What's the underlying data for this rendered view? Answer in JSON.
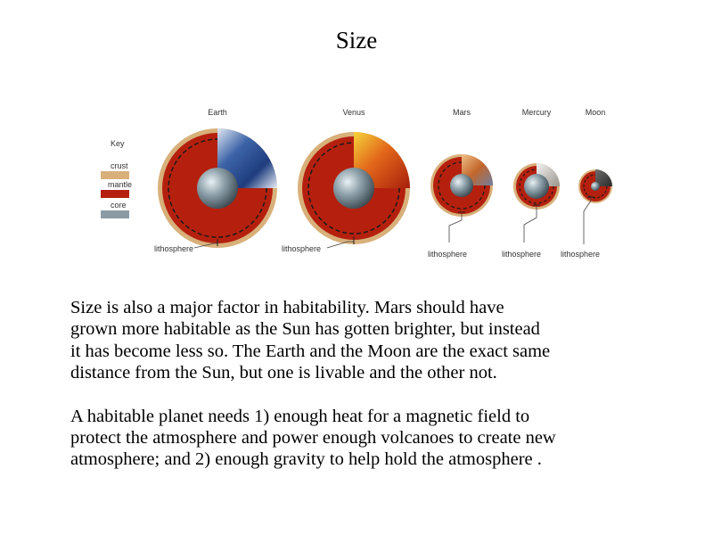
{
  "slide": {
    "title": "Size"
  },
  "figure": {
    "key": {
      "heading": "Key",
      "crust": "crust",
      "mantle": "mantle",
      "core": "core"
    },
    "planets": [
      {
        "name": "Earth",
        "label": "lithosphere"
      },
      {
        "name": "Venus",
        "label": "lithosphere"
      },
      {
        "name": "Mars",
        "label": "lithosphere"
      },
      {
        "name": "Mercury",
        "label": "lithosphere"
      },
      {
        "name": "Moon",
        "label": "lithosphere"
      }
    ],
    "colors": {
      "crust": "#d8b07a",
      "mantle": "#b5200e",
      "core": "#8a9ba4"
    }
  },
  "body": {
    "paragraph1": [
      "Size is also a major factor in habitability.  Mars should have",
      "grown more habitable as the Sun has gotten brighter, but instead",
      "it has become less so.  The Earth and the Moon are the exact same",
      "distance from the Sun, but one is livable and the other not."
    ],
    "paragraph2": [
      "A habitable planet needs 1) enough heat for a magnetic field to",
      "protect the atmosphere and power enough volcanoes to create new",
      "atmosphere; and 2) enough gravity to help hold the atmosphere ."
    ]
  }
}
